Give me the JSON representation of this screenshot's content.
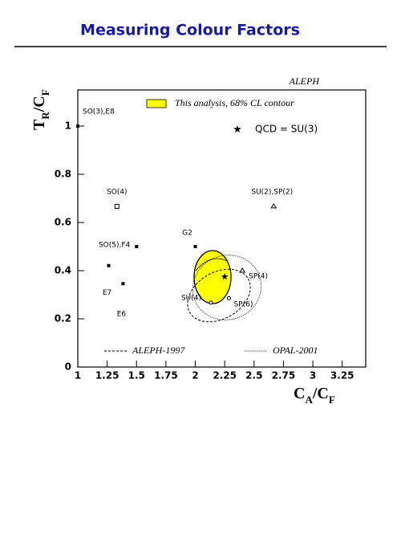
{
  "chart_data": {
    "type": "scatter",
    "title": "Measuring Colour Factors",
    "experiment": "ALEPH",
    "xlabel": [
      "C",
      "A",
      "/C",
      "F"
    ],
    "ylabel": [
      "T",
      "R",
      "/C",
      "F"
    ],
    "xlim": [
      1,
      3.45
    ],
    "ylim": [
      0,
      1.15
    ],
    "xticks": [
      1,
      1.25,
      1.5,
      1.75,
      2,
      2.25,
      2.5,
      2.75,
      3,
      3.25
    ],
    "yticks": [
      0,
      0.2,
      0.4,
      0.6,
      0.8,
      1
    ],
    "points": [
      {
        "name": "SO(3),E8",
        "x": 1,
        "y": 1,
        "marker": "filled-square"
      },
      {
        "name": "SO(4)",
        "x": 1.333,
        "y": 0.667,
        "marker": "open-square"
      },
      {
        "name": "SU(2),SP(2)",
        "x": 2.667,
        "y": 0.667,
        "marker": "open-triangle"
      },
      {
        "name": "SO(5),F4",
        "x": 1.5,
        "y": 0.5,
        "marker": "filled-square"
      },
      {
        "name": "G2",
        "x": 2,
        "y": 0.5,
        "marker": "filled-square"
      },
      {
        "name": "E7",
        "x": 1.263,
        "y": 0.421,
        "marker": "filled-square"
      },
      {
        "name": "E6",
        "x": 1.385,
        "y": 0.346,
        "marker": "filled-square"
      },
      {
        "name": "QCD = SU(3)",
        "x": 2.25,
        "y": 0.375,
        "marker": "star"
      },
      {
        "name": "SU(4)",
        "x": 2.133,
        "y": 0.267,
        "marker": "open-circle"
      },
      {
        "name": "SP(6)",
        "x": 2.286,
        "y": 0.286,
        "marker": "open-circle"
      },
      {
        "name": "SP(4)",
        "x": 2.4,
        "y": 0.4,
        "marker": "open-triangle"
      }
    ],
    "contours": [
      {
        "name": "This analysis, 68% CL contour",
        "color": "#ffff00",
        "style": "filled"
      },
      {
        "name": "ALEPH-1997",
        "color": "#000000",
        "style": "dashed"
      },
      {
        "name": "OPAL-2001",
        "color": "#000000",
        "style": "dotted"
      }
    ]
  }
}
